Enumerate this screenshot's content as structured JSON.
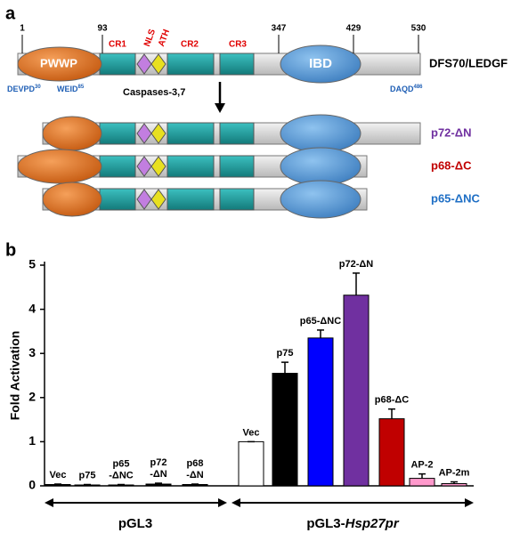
{
  "panel_a": {
    "letter": "a",
    "positions": [
      "1",
      "93",
      "347",
      "429",
      "530"
    ],
    "domains": {
      "pwwp": "PWWP",
      "cr1": "CR1",
      "nls": "NLS",
      "ath": "ATH",
      "cr2": "CR2",
      "cr3": "CR3",
      "ibd": "IBD"
    },
    "sites": [
      {
        "text": "DEVPD",
        "sup": "30"
      },
      {
        "text": "WEID",
        "sup": "85"
      },
      {
        "text": "DAQD",
        "sup": "486"
      }
    ],
    "protease": "Caspases-3,7",
    "proteins": [
      "DFS70/LEDGF",
      "p72-ΔN",
      "p68-ΔC",
      "p65-ΔNC"
    ]
  },
  "chart_data": {
    "type": "bar",
    "letter": "b",
    "y_label": "Fold Activation",
    "categories": [
      "Vec",
      "p75",
      "p65\n-ΔNC",
      "p72\n-ΔN",
      "p68\n-ΔN",
      "Vec",
      "p75",
      "p65-ΔNC",
      "p72-ΔN",
      "p68-ΔC",
      "AP-2",
      "AP-2m"
    ],
    "values": [
      0.03,
      0.02,
      0.02,
      0.04,
      0.03,
      1.0,
      2.55,
      3.35,
      4.32,
      1.52,
      0.17,
      0.05
    ],
    "errors": [
      0.01,
      0.01,
      0.01,
      0.02,
      0.01,
      0,
      0.25,
      0.18,
      0.5,
      0.22,
      0.1,
      0.04
    ],
    "colors": [
      "#000000",
      "#000000",
      "#000000",
      "#000000",
      "#000000",
      "#ffffff",
      "#000000",
      "#0000ff",
      "#7030a0",
      "#c00000",
      "#ff99cc",
      "#ff99cc"
    ],
    "ylim": [
      0,
      5
    ],
    "yticks": [
      0,
      1,
      2,
      3,
      4,
      5
    ],
    "groups": [
      [
        "pGL3"
      ],
      [
        "pGL3-",
        "Hsp27pr"
      ]
    ]
  }
}
